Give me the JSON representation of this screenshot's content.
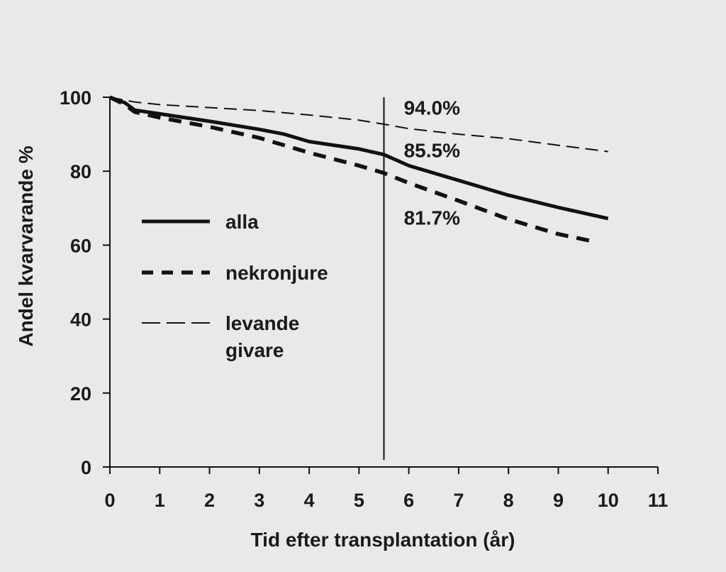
{
  "chart_data": {
    "type": "line",
    "title": "",
    "xlabel": "Tid efter transplantation (år)",
    "ylabel": "Andel kvarvarande %",
    "xlim": [
      0,
      11
    ],
    "ylim": [
      0,
      100
    ],
    "xticks": [
      "0",
      "1",
      "2",
      "3",
      "4",
      "5",
      "6",
      "7",
      "8",
      "9",
      "10",
      "11"
    ],
    "yticks": [
      "0",
      "20",
      "40",
      "60",
      "80",
      "100"
    ],
    "grid": false,
    "legend_position": "center-left",
    "reference_line_x": 5.5,
    "series": [
      {
        "name": "alla",
        "style": "solid-thick",
        "x": [
          0,
          0.3,
          0.5,
          1,
          2,
          3,
          3.5,
          4,
          5,
          5.5,
          6,
          7,
          8,
          9,
          10
        ],
        "y": [
          100,
          98.5,
          96.5,
          95.5,
          93.5,
          91.3,
          90,
          88,
          86,
          84.5,
          81.5,
          77.5,
          73.5,
          70.2,
          67.2
        ]
      },
      {
        "name": "nekronjure",
        "style": "dashed-thick",
        "x": [
          0,
          0.3,
          0.5,
          1,
          2,
          3,
          4,
          5,
          5.5,
          6,
          7,
          8,
          9,
          9.7
        ],
        "y": [
          100,
          98,
          96,
          94.5,
          92,
          89,
          85,
          81.5,
          79.5,
          76.8,
          72,
          67,
          63,
          61
        ]
      },
      {
        "name": "levande\ngivare",
        "style": "dashed-thin",
        "x": [
          0,
          0.5,
          1,
          2,
          3,
          4,
          5,
          5.5,
          6,
          7,
          8,
          9,
          10
        ],
        "y": [
          100,
          98.7,
          98,
          97.2,
          96.4,
          95.2,
          93.8,
          92.7,
          91.5,
          90,
          88.8,
          87,
          85.3
        ]
      }
    ],
    "annotations": [
      {
        "text": "94.0%",
        "x": 5.9,
        "y": 97.2
      },
      {
        "text": "85.5%",
        "x": 5.9,
        "y": 85.7
      },
      {
        "text": "81.7%",
        "x": 5.9,
        "y": 67.5
      }
    ]
  }
}
